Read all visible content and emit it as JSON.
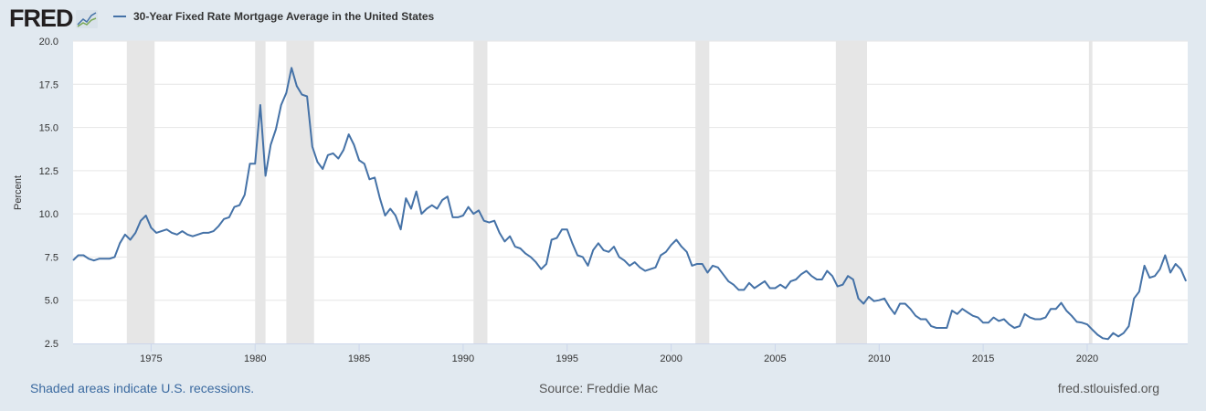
{
  "header": {
    "logo": "FRED",
    "legend_label": "30-Year Fixed Rate Mortgage Average in the United States"
  },
  "footer": {
    "recession_note": "Shaded areas indicate U.S. recessions.",
    "source": "Source: Freddie Mac",
    "site": "fred.stlouisfed.org"
  },
  "colors": {
    "line": "#4572a7",
    "recession": "#e6e6e6",
    "background": "#e1e9f0",
    "plot": "#ffffff",
    "link": "#3b6aa0"
  },
  "chart_data": {
    "type": "line",
    "title": "30-Year Fixed Rate Mortgage Average in the United States",
    "ylabel": "Percent",
    "xlabel": "",
    "ylim": [
      2.5,
      20.0
    ],
    "xlim": [
      "1971-04",
      "2024-11"
    ],
    "yticks": [
      "2.5",
      "5.0",
      "7.5",
      "10.0",
      "12.5",
      "15.0",
      "17.5",
      "20.0"
    ],
    "xticks": [
      "1975",
      "1980",
      "1985",
      "1990",
      "1995",
      "2000",
      "2005",
      "2010",
      "2015",
      "2020"
    ],
    "grid": "horizontal",
    "recessions": [
      [
        "1973-11",
        "1975-03"
      ],
      [
        "1980-01",
        "1980-07"
      ],
      [
        "1981-07",
        "1982-11"
      ],
      [
        "1990-07",
        "1991-03"
      ],
      [
        "2001-03",
        "2001-11"
      ],
      [
        "2007-12",
        "2009-06"
      ],
      [
        "2020-02",
        "2020-04"
      ]
    ],
    "series": [
      {
        "dates": [
          "1971-04",
          "1971-07",
          "1971-10",
          "1972-01",
          "1972-04",
          "1972-07",
          "1972-10",
          "1973-01",
          "1973-04",
          "1973-07",
          "1973-10",
          "1974-01",
          "1974-04",
          "1974-07",
          "1974-10",
          "1975-01",
          "1975-04",
          "1975-07",
          "1975-10",
          "1976-01",
          "1976-04",
          "1976-07",
          "1976-10",
          "1977-01",
          "1977-04",
          "1977-07",
          "1977-10",
          "1978-01",
          "1978-04",
          "1978-07",
          "1978-10",
          "1979-01",
          "1979-04",
          "1979-07",
          "1979-10",
          "1980-01",
          "1980-04",
          "1980-07",
          "1980-10",
          "1981-01",
          "1981-04",
          "1981-07",
          "1981-10",
          "1982-01",
          "1982-04",
          "1982-07",
          "1982-10",
          "1983-01",
          "1983-04",
          "1983-07",
          "1983-10",
          "1984-01",
          "1984-04",
          "1984-07",
          "1984-10",
          "1985-01",
          "1985-04",
          "1985-07",
          "1985-10",
          "1986-01",
          "1986-04",
          "1986-07",
          "1986-10",
          "1987-01",
          "1987-04",
          "1987-07",
          "1987-10",
          "1988-01",
          "1988-04",
          "1988-07",
          "1988-10",
          "1989-01",
          "1989-04",
          "1989-07",
          "1989-10",
          "1990-01",
          "1990-04",
          "1990-07",
          "1990-10",
          "1991-01",
          "1991-04",
          "1991-07",
          "1991-10",
          "1992-01",
          "1992-04",
          "1992-07",
          "1992-10",
          "1993-01",
          "1993-04",
          "1993-07",
          "1993-10",
          "1994-01",
          "1994-04",
          "1994-07",
          "1994-10",
          "1995-01",
          "1995-04",
          "1995-07",
          "1995-10",
          "1996-01",
          "1996-04",
          "1996-07",
          "1996-10",
          "1997-01",
          "1997-04",
          "1997-07",
          "1997-10",
          "1998-01",
          "1998-04",
          "1998-07",
          "1998-10",
          "1999-01",
          "1999-04",
          "1999-07",
          "1999-10",
          "2000-01",
          "2000-04",
          "2000-07",
          "2000-10",
          "2001-01",
          "2001-04",
          "2001-07",
          "2001-10",
          "2002-01",
          "2002-04",
          "2002-07",
          "2002-10",
          "2003-01",
          "2003-04",
          "2003-07",
          "2003-10",
          "2004-01",
          "2004-04",
          "2004-07",
          "2004-10",
          "2005-01",
          "2005-04",
          "2005-07",
          "2005-10",
          "2006-01",
          "2006-04",
          "2006-07",
          "2006-10",
          "2007-01",
          "2007-04",
          "2007-07",
          "2007-10",
          "2008-01",
          "2008-04",
          "2008-07",
          "2008-10",
          "2009-01",
          "2009-04",
          "2009-07",
          "2009-10",
          "2010-01",
          "2010-04",
          "2010-07",
          "2010-10",
          "2011-01",
          "2011-04",
          "2011-07",
          "2011-10",
          "2012-01",
          "2012-04",
          "2012-07",
          "2012-10",
          "2013-01",
          "2013-04",
          "2013-07",
          "2013-10",
          "2014-01",
          "2014-04",
          "2014-07",
          "2014-10",
          "2015-01",
          "2015-04",
          "2015-07",
          "2015-10",
          "2016-01",
          "2016-04",
          "2016-07",
          "2016-10",
          "2017-01",
          "2017-04",
          "2017-07",
          "2017-10",
          "2018-01",
          "2018-04",
          "2018-07",
          "2018-10",
          "2019-01",
          "2019-04",
          "2019-07",
          "2019-10",
          "2020-01",
          "2020-04",
          "2020-07",
          "2020-10",
          "2021-01",
          "2021-04",
          "2021-07",
          "2021-10",
          "2022-01",
          "2022-04",
          "2022-07",
          "2022-10",
          "2023-01",
          "2023-04",
          "2023-07",
          "2023-10",
          "2024-01",
          "2024-04",
          "2024-07",
          "2024-10"
        ],
        "values": [
          7.31,
          7.6,
          7.6,
          7.4,
          7.3,
          7.4,
          7.4,
          7.4,
          7.5,
          8.3,
          8.8,
          8.5,
          8.9,
          9.6,
          9.9,
          9.2,
          8.9,
          9.0,
          9.1,
          8.9,
          8.8,
          9.0,
          8.8,
          8.7,
          8.8,
          8.9,
          8.9,
          9.0,
          9.3,
          9.7,
          9.8,
          10.4,
          10.5,
          11.1,
          12.9,
          12.9,
          16.3,
          12.2,
          14.0,
          14.9,
          16.3,
          17.0,
          18.45,
          17.4,
          16.9,
          16.8,
          13.9,
          13.0,
          12.6,
          13.4,
          13.5,
          13.2,
          13.7,
          14.6,
          14.0,
          13.1,
          12.9,
          12.0,
          12.1,
          10.9,
          9.9,
          10.3,
          9.9,
          9.1,
          10.9,
          10.3,
          11.3,
          10.0,
          10.3,
          10.5,
          10.3,
          10.8,
          11.0,
          9.8,
          9.8,
          9.9,
          10.4,
          10.0,
          10.2,
          9.6,
          9.5,
          9.6,
          8.9,
          8.4,
          8.7,
          8.1,
          8.0,
          7.7,
          7.5,
          7.2,
          6.8,
          7.1,
          8.5,
          8.6,
          9.1,
          9.1,
          8.3,
          7.6,
          7.5,
          7.0,
          7.9,
          8.3,
          7.9,
          7.8,
          8.1,
          7.5,
          7.3,
          7.0,
          7.2,
          6.9,
          6.7,
          6.8,
          6.9,
          7.6,
          7.8,
          8.2,
          8.5,
          8.1,
          7.8,
          7.0,
          7.1,
          7.1,
          6.6,
          7.0,
          6.9,
          6.5,
          6.1,
          5.9,
          5.6,
          5.6,
          6.0,
          5.7,
          5.9,
          6.1,
          5.7,
          5.7,
          5.9,
          5.7,
          6.1,
          6.2,
          6.5,
          6.7,
          6.4,
          6.2,
          6.2,
          6.7,
          6.4,
          5.8,
          5.9,
          6.4,
          6.2,
          5.1,
          4.8,
          5.2,
          4.95,
          5.0,
          5.1,
          4.6,
          4.2,
          4.8,
          4.8,
          4.5,
          4.1,
          3.9,
          3.9,
          3.5,
          3.4,
          3.4,
          3.4,
          4.4,
          4.2,
          4.5,
          4.3,
          4.1,
          4.0,
          3.7,
          3.7,
          4.0,
          3.8,
          3.9,
          3.6,
          3.4,
          3.5,
          4.2,
          4.0,
          3.9,
          3.9,
          4.0,
          4.5,
          4.5,
          4.85,
          4.4,
          4.1,
          3.75,
          3.7,
          3.6,
          3.3,
          3.0,
          2.8,
          2.75,
          3.1,
          2.9,
          3.1,
          3.5,
          5.1,
          5.5,
          7.0,
          6.3,
          6.4,
          6.8,
          7.6,
          6.6,
          7.1,
          6.8,
          6.1
        ]
      }
    ]
  }
}
